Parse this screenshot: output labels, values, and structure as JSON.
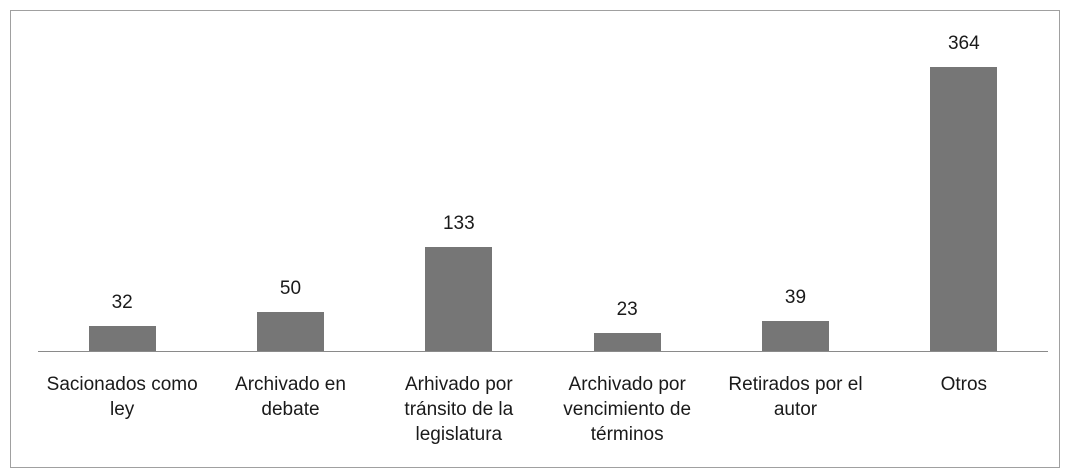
{
  "chart_data": {
    "type": "bar",
    "categories": [
      "Sacionados como ley",
      "Archivado en debate",
      "Arhivado por tránsito de la legislatura",
      "Archivado por vencimiento de términos",
      "Retirados por el autor",
      "Otros"
    ],
    "values": [
      32,
      50,
      133,
      23,
      39,
      364
    ],
    "color": "#767676"
  }
}
